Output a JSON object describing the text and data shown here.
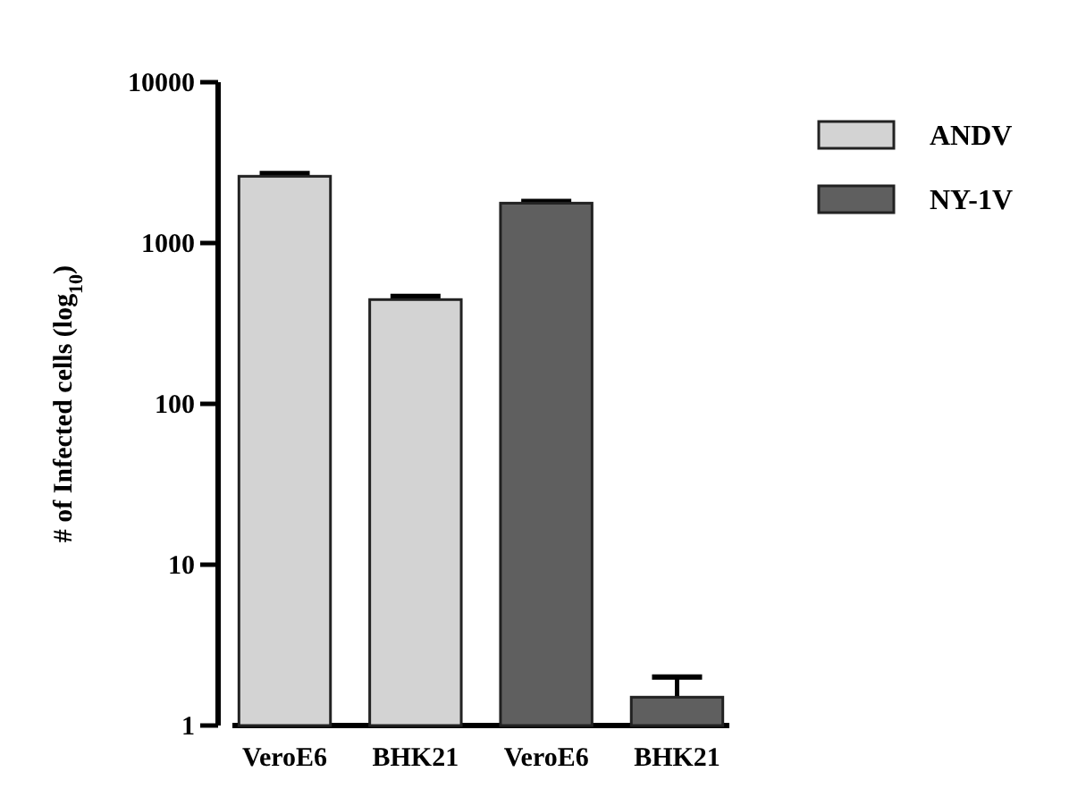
{
  "chart_data": {
    "type": "bar",
    "ylabel": "# of Infected cells (log$_{10}$)",
    "categories": [
      "VeroE6",
      "BHK21",
      "VeroE6",
      "BHK21"
    ],
    "series": [
      {
        "name": "ANDV",
        "color": "#d3d3d3",
        "values": [
          2600,
          445,
          null,
          null
        ],
        "errors": [
          [
            2600,
            2700
          ],
          [
            445,
            465
          ],
          null,
          null
        ]
      },
      {
        "name": "NY-1V",
        "color": "#5f5f5f",
        "values": [
          null,
          null,
          1770,
          1.5
        ],
        "errors": [
          null,
          null,
          [
            1770,
            1810
          ],
          [
            1.5,
            2.0
          ]
        ]
      }
    ],
    "log": true,
    "ylim": [
      1,
      10000
    ],
    "yticks": [
      1,
      10,
      100,
      1000,
      10000
    ],
    "legend": "right",
    "grid": false
  }
}
